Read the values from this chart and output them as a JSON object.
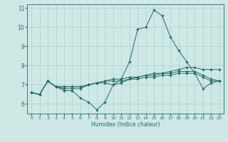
{
  "xlabel": "Humidex (Indice chaleur)",
  "xlim": [
    -0.5,
    23.5
  ],
  "ylim": [
    5.5,
    11.2
  ],
  "xticks": [
    0,
    1,
    2,
    3,
    4,
    5,
    6,
    7,
    8,
    9,
    10,
    11,
    12,
    13,
    14,
    15,
    16,
    17,
    18,
    19,
    20,
    21,
    22,
    23
  ],
  "yticks": [
    6,
    7,
    8,
    9,
    10,
    11
  ],
  "bg_color": "#cde8e5",
  "line_color": "#2a6b5e",
  "grid_color": "#afd0cc",
  "lines": [
    [
      6.6,
      6.5,
      7.2,
      6.9,
      6.7,
      6.7,
      6.3,
      6.1,
      5.7,
      6.1,
      7.0,
      7.3,
      8.2,
      9.9,
      10.0,
      10.9,
      10.6,
      9.5,
      8.8,
      8.2,
      7.6,
      6.8,
      7.1,
      7.2
    ],
    [
      6.6,
      6.5,
      7.2,
      6.9,
      6.8,
      6.8,
      6.8,
      7.0,
      7.1,
      7.1,
      7.0,
      7.1,
      7.3,
      7.4,
      7.5,
      7.6,
      7.6,
      7.7,
      7.8,
      7.9,
      7.9,
      7.8,
      7.8,
      7.8
    ],
    [
      6.6,
      6.5,
      7.2,
      6.9,
      6.9,
      6.9,
      6.9,
      7.0,
      7.1,
      7.2,
      7.3,
      7.3,
      7.4,
      7.4,
      7.5,
      7.5,
      7.6,
      7.6,
      7.7,
      7.7,
      7.7,
      7.5,
      7.3,
      7.2
    ],
    [
      6.6,
      6.5,
      7.2,
      6.9,
      6.9,
      6.9,
      6.9,
      7.0,
      7.1,
      7.2,
      7.2,
      7.2,
      7.3,
      7.3,
      7.4,
      7.4,
      7.5,
      7.5,
      7.6,
      7.6,
      7.6,
      7.4,
      7.2,
      7.2
    ]
  ]
}
